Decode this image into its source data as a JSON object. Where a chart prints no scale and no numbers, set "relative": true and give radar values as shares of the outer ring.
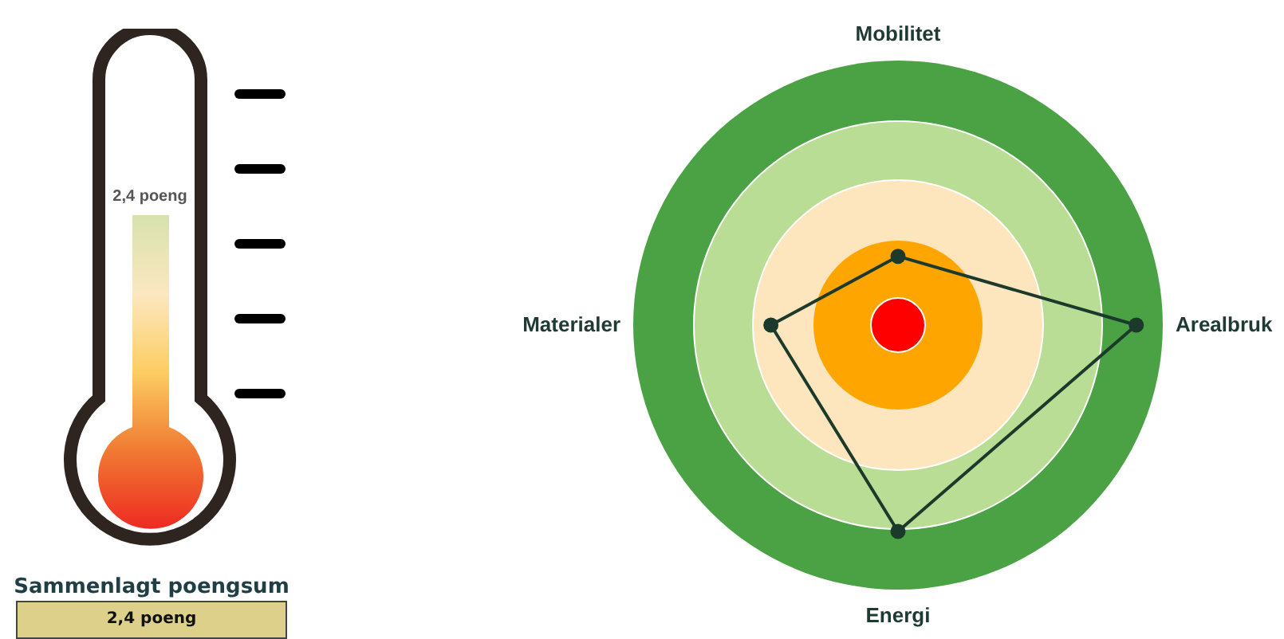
{
  "chart_data": [
    {
      "type": "other",
      "title": "Sammenlagt poengsum",
      "annotations": [
        "2,4 poeng",
        "2,4 poeng"
      ]
    },
    {
      "type": "radar",
      "categories": [
        "Mobilitet",
        "Arealbruk",
        "Energi",
        "Materialer"
      ],
      "relative": true,
      "marker": "circle",
      "series": [
        {
          "color": "#1c3a2c",
          "values": [
            0.26,
            0.9,
            0.78,
            0.48
          ]
        }
      ]
    }
  ]
}
